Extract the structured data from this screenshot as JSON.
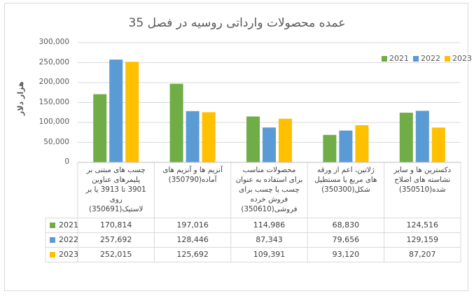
{
  "chart_data": {
    "type": "bar",
    "title": "عمده محصولات وارداتی روسیه در فصل 35",
    "ylabel": "هزار دلار",
    "ylim": [
      0,
      300000
    ],
    "yticks": [
      "0",
      "50,000",
      "100,000",
      "150,000",
      "200,000",
      "250,000",
      "300,000"
    ],
    "categories": [
      "چسب های مبتنی بر پلیمرهای عناوین 3901 تا 3913 یا بر روی لاستیک(350691)",
      "آنزیم ها و آنزیم های آماده(350790)",
      "محصولات مناسب برای استفاده به عنوان چسب یا چسب برای فروش خرده فروشی(350610)",
      "ژلاتین، اعم از ورقه های مربع یا مستطیل شکل(350300)",
      "دکسترین ها و سایر نشاسته های اصلاح شده(350510)"
    ],
    "series": [
      {
        "name": "2021",
        "color": "#70ad47",
        "values": [
          170814,
          197016,
          114986,
          68830,
          124516
        ],
        "labels": [
          "170,814",
          "197,016",
          "114,986",
          "68,830",
          "124,516"
        ]
      },
      {
        "name": "2022",
        "color": "#5b9bd5",
        "values": [
          257692,
          128446,
          87343,
          79656,
          129159
        ],
        "labels": [
          "257,692",
          "128,446",
          "87,343",
          "79,656",
          "129,159"
        ]
      },
      {
        "name": "2023",
        "color": "#ffc000",
        "values": [
          252015,
          125692,
          109391,
          93120,
          87207
        ],
        "labels": [
          "252,015",
          "125,692",
          "109,391",
          "93,120",
          "87,207"
        ]
      }
    ],
    "legend": "top-right",
    "grid": true
  }
}
